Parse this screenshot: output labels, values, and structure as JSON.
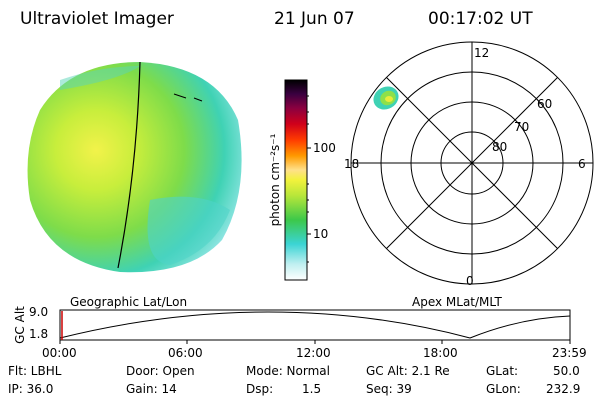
{
  "header": {
    "title": "Ultraviolet Imager",
    "date": "21 Jun 07",
    "time": "00:17:02 UT"
  },
  "colorbar": {
    "unit_label": "photon cm⁻²s⁻¹",
    "tick_100": "100",
    "tick_10": "10",
    "scale": "log"
  },
  "polar_plot": {
    "mlt_labels": {
      "top": "12",
      "left": "18",
      "right": "6",
      "bottom": "0"
    },
    "lat_rings": [
      "60",
      "70",
      "80"
    ],
    "frame_label": "Apex MLat/MLT"
  },
  "image_panel": {
    "frame_label": "Geographic Lat/Lon"
  },
  "timeline": {
    "axis_label": "GC Alt",
    "y_max": "9.0",
    "y_min": "1.8",
    "ticks": [
      "00:00",
      "06:00",
      "12:00",
      "18:00",
      "23:59"
    ],
    "current_marker_color": "#cc0000"
  },
  "info": {
    "filter": "Flt: LBHL",
    "ip": "IP: 36.0",
    "door": "Door: Open",
    "gain": "Gain: 14",
    "mode": "Mode: Normal",
    "dsp_label": "Dsp:",
    "dsp_value": "1.5",
    "gc_alt": "GC Alt: 2.1 Re",
    "seq": "Seq: 39",
    "glat_label": "GLat:",
    "glat_value": "50.0",
    "glon_label": "GLon:",
    "glon_value": "232.9"
  }
}
